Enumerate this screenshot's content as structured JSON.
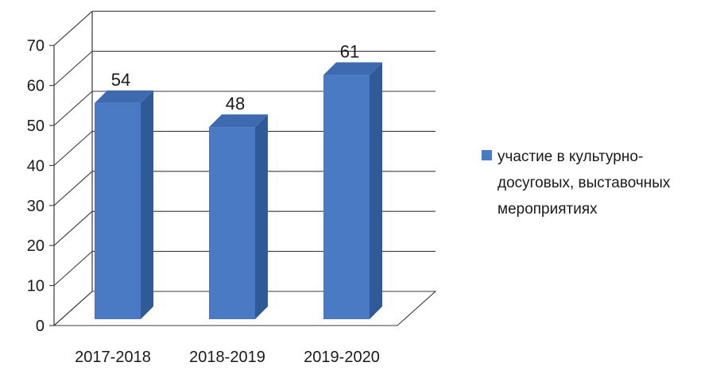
{
  "chart_data": {
    "type": "bar",
    "categories": [
      "2017-2018",
      "2018-2019",
      "2019-2020"
    ],
    "series": [
      {
        "name": "участие в культурно-досуговых, выставочных мероприятиях",
        "values": [
          54,
          48,
          61
        ],
        "color": "#4a7ac4"
      }
    ],
    "data_labels": [
      "54",
      "48",
      "61"
    ],
    "y_ticks": [
      "0",
      "10",
      "20",
      "30",
      "40",
      "50",
      "60",
      "70"
    ],
    "ylim": [
      0,
      70
    ],
    "grid": true,
    "legend_position": "right",
    "style": "3d-column"
  }
}
